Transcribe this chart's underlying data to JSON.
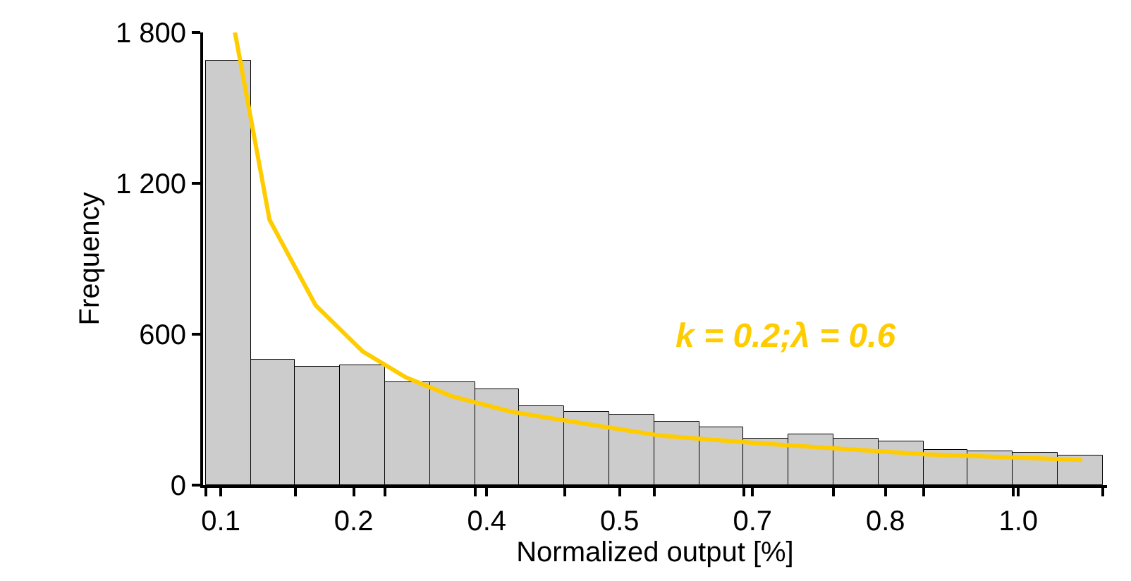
{
  "chart_data": {
    "type": "histogram",
    "xlabel": "Normalized output [%]",
    "ylabel": "Frequency",
    "xlim": [
      0.08,
      1.1
    ],
    "xticks": [
      {
        "value": 0.1,
        "label": "0.1"
      },
      {
        "value": 0.25,
        "label": "0.2"
      },
      {
        "value": 0.4,
        "label": "0.4"
      },
      {
        "value": 0.55,
        "label": "0.5"
      },
      {
        "value": 0.7,
        "label": "0.7"
      },
      {
        "value": 0.85,
        "label": "0.8"
      },
      {
        "value": 1.0,
        "label": "1.0"
      },
      {
        "value": 0.083,
        "label": null
      },
      {
        "value": 0.184,
        "label": null
      },
      {
        "value": 0.285,
        "label": null
      },
      {
        "value": 0.387,
        "label": null
      },
      {
        "value": 0.488,
        "label": null
      },
      {
        "value": 0.589,
        "label": null
      },
      {
        "value": 0.69,
        "label": null
      },
      {
        "value": 0.791,
        "label": null
      },
      {
        "value": 0.893,
        "label": null
      },
      {
        "value": 0.994,
        "label": null
      },
      {
        "value": 1.095,
        "label": null
      }
    ],
    "ylim": [
      0,
      1800
    ],
    "yticks": [
      {
        "value": 0,
        "label": "0"
      },
      {
        "value": 600,
        "label": "600"
      },
      {
        "value": 1200,
        "label": "1 200"
      },
      {
        "value": 1800,
        "label": "1 800"
      }
    ],
    "legend": false,
    "series": [
      {
        "type": "histogram",
        "color": "#cccccc",
        "bins": [
          0.083,
          0.134,
          0.184,
          0.235,
          0.285,
          0.336,
          0.387,
          0.437,
          0.488,
          0.538,
          0.589,
          0.64,
          0.69,
          0.741,
          0.791,
          0.842,
          0.893,
          0.943,
          0.994,
          1.044,
          1.095
        ],
        "values": [
          1690,
          500,
          472,
          474,
          410,
          408,
          379,
          313,
          289,
          280,
          251,
          230,
          185,
          200,
          183,
          175,
          140,
          134,
          128,
          115
        ]
      },
      {
        "type": "line",
        "name": "k = 0.2;λ = 0.6",
        "color": "#ffcc00",
        "marker": "none",
        "line_style": "solid",
        "x": [
          0.116,
          0.155,
          0.207,
          0.26,
          0.309,
          0.361,
          0.429,
          0.55,
          0.598,
          0.708,
          0.893,
          1.072
        ],
        "values": [
          1800,
          1055,
          715,
          532,
          428,
          353,
          291,
          222,
          196,
          166,
          123,
          100
        ]
      }
    ]
  }
}
